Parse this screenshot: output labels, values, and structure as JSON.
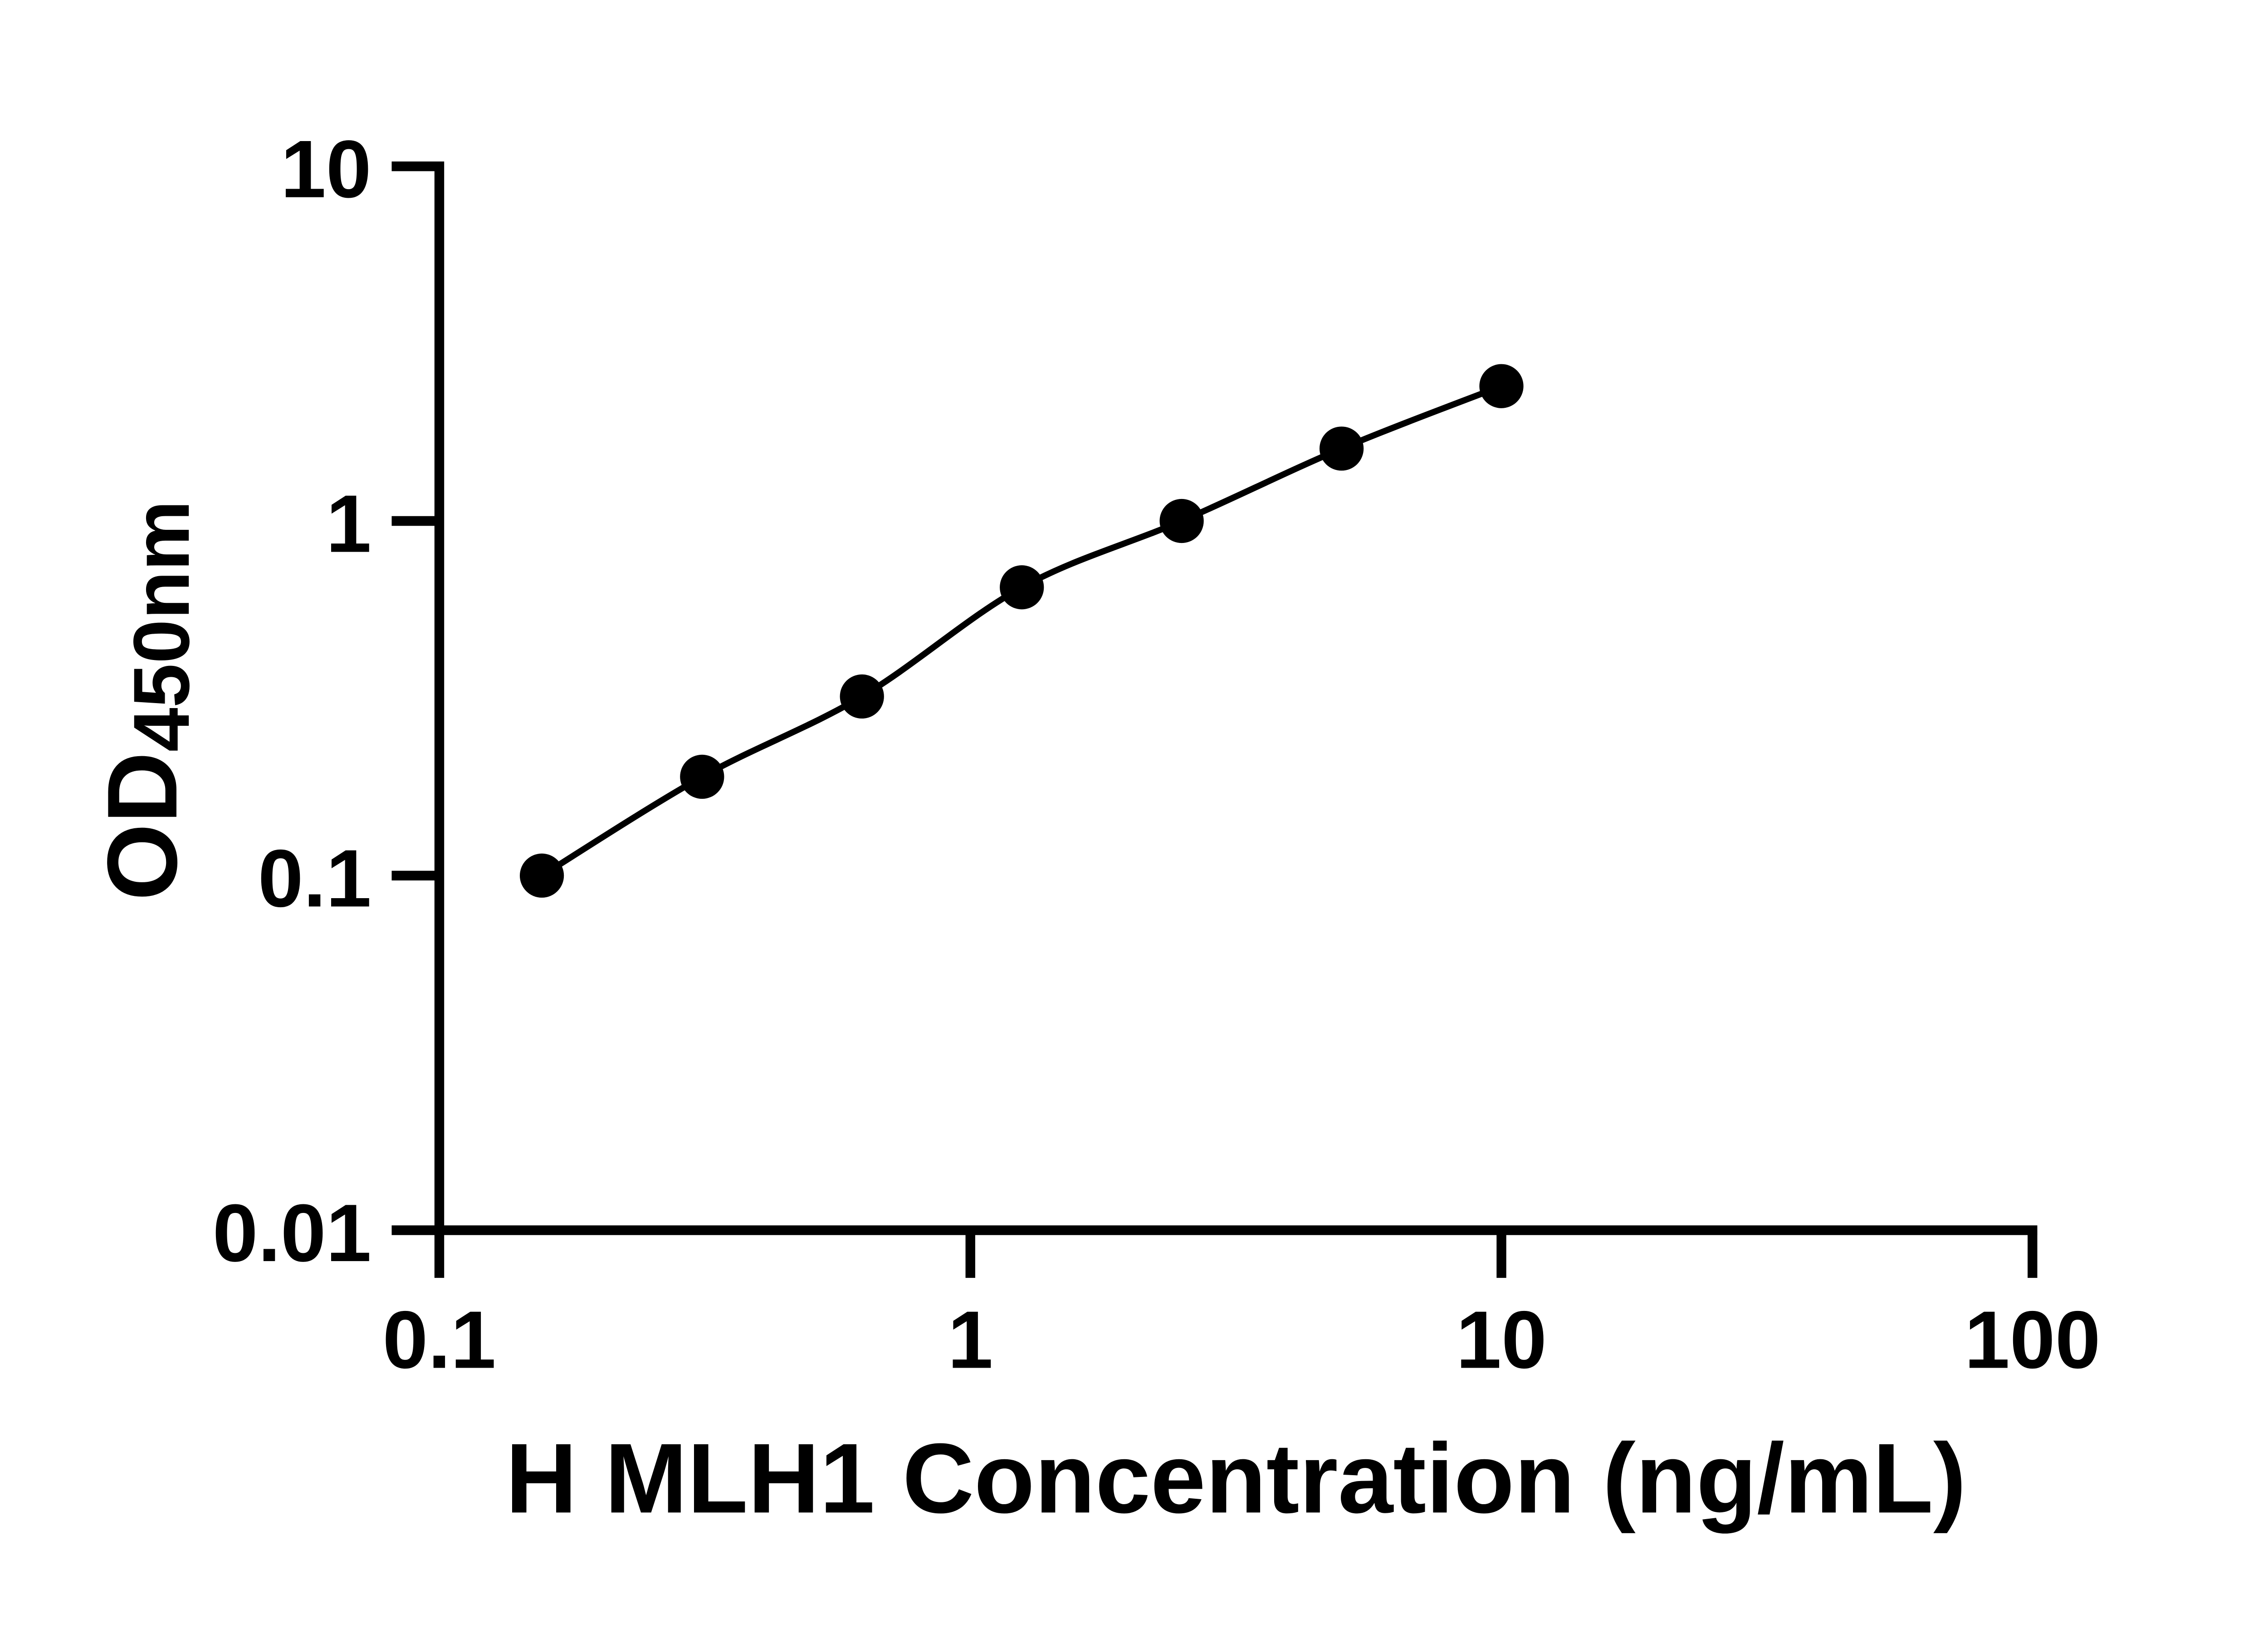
{
  "figure": {
    "background": "#ffffff",
    "ink_color": "#000000"
  },
  "chart_data": {
    "type": "line",
    "subtype": "scatter-with-fitted-curve",
    "xlabel": "H MLH1 Concentration (ng/mL)",
    "ylabel": "OD450nm",
    "ylabel_main": "OD",
    "ylabel_sub": "450nm",
    "x": [
      0.156,
      0.3125,
      0.625,
      1.25,
      2.5,
      5,
      10
    ],
    "y": [
      0.1,
      0.19,
      0.32,
      0.65,
      1.0,
      1.6,
      2.4
    ],
    "x_scale": "log",
    "y_scale": "log",
    "xlim": [
      0.1,
      100
    ],
    "ylim": [
      0.01,
      10
    ],
    "x_tick_values": [
      0.1,
      1,
      10,
      100
    ],
    "x_tick_labels": [
      "0.1",
      "1",
      "10",
      "100"
    ],
    "y_tick_values": [
      10,
      1,
      0.1,
      0.01
    ],
    "y_tick_labels": [
      "10",
      "1",
      "0.1",
      "0.01"
    ],
    "grid": false,
    "legend": "none",
    "line_color": "#000000",
    "marker_color": "#000000",
    "marker_shape": "circle"
  }
}
